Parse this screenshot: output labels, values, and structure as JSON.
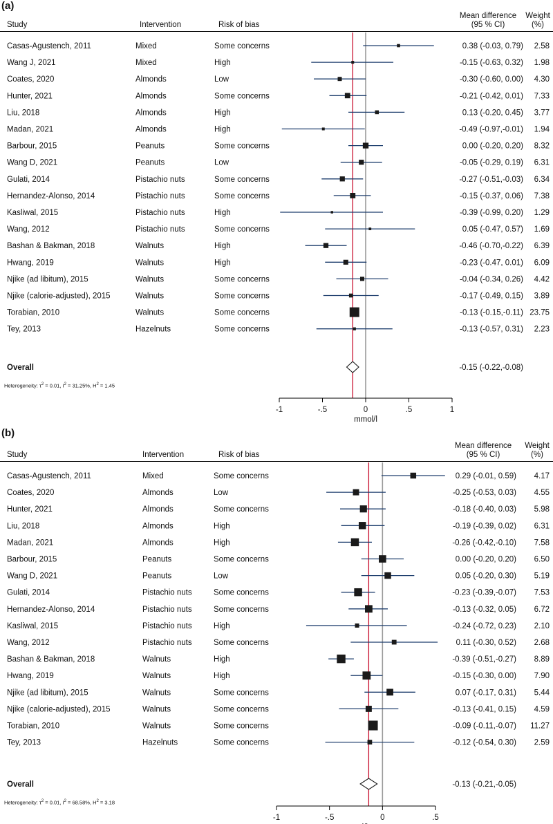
{
  "chart_data": [
    {
      "type": "forest",
      "panel_label": "(a)",
      "headers": {
        "study": "Study",
        "intervention": "Intervention",
        "risk": "Risk of bias",
        "md_line1": "Mean difference",
        "md_line2": "(95 % CI)",
        "weight_line1": "Weight",
        "weight_line2": "(%)"
      },
      "xlabel": "mmol/l",
      "xlim": [
        -1,
        1
      ],
      "ticks": [
        -1,
        -0.5,
        0,
        0.5,
        1
      ],
      "tick_labels": [
        "-1",
        "-.5",
        "0",
        ".5",
        "1"
      ],
      "pooled_line": -0.15,
      "rows": [
        {
          "study": "Casas-Agustench, 2011",
          "intervention": "Mixed",
          "risk": "Some concerns",
          "md": 0.38,
          "lo": -0.03,
          "hi": 0.79,
          "ci_text": "0.38 (-0.03, 0.79)",
          "weight": "2.58"
        },
        {
          "study": "Wang J, 2021",
          "intervention": "Mixed",
          "risk": "High",
          "md": -0.15,
          "lo": -0.63,
          "hi": 0.32,
          "ci_text": "-0.15 (-0.63, 0.32)",
          "weight": "1.98"
        },
        {
          "study": "Coates, 2020",
          "intervention": "Almonds",
          "risk": "Low",
          "md": -0.3,
          "lo": -0.6,
          "hi": 0.0,
          "ci_text": "-0.30 (-0.60, 0.00)",
          "weight": "4.30"
        },
        {
          "study": "Hunter, 2021",
          "intervention": "Almonds",
          "risk": "Some concerns",
          "md": -0.21,
          "lo": -0.42,
          "hi": 0.01,
          "ci_text": "-0.21 (-0.42, 0.01)",
          "weight": "7.33"
        },
        {
          "study": "Liu, 2018",
          "intervention": "Almonds",
          "risk": "High",
          "md": 0.13,
          "lo": -0.2,
          "hi": 0.45,
          "ci_text": "0.13 (-0.20, 0.45)",
          "weight": "3.77"
        },
        {
          "study": "Madan, 2021",
          "intervention": "Almonds",
          "risk": "High",
          "md": -0.49,
          "lo": -0.97,
          "hi": -0.01,
          "ci_text": "-0.49 (-0.97,-0.01)",
          "weight": "1.94"
        },
        {
          "study": "Barbour, 2015",
          "intervention": "Peanuts",
          "risk": "Some concerns",
          "md": 0.0,
          "lo": -0.2,
          "hi": 0.2,
          "ci_text": "0.00 (-0.20, 0.20)",
          "weight": "8.32"
        },
        {
          "study": "Wang D, 2021",
          "intervention": "Peanuts",
          "risk": "Low",
          "md": -0.05,
          "lo": -0.29,
          "hi": 0.19,
          "ci_text": "-0.05 (-0.29, 0.19)",
          "weight": "6.31"
        },
        {
          "study": "Gulati, 2014",
          "intervention": "Pistachio nuts",
          "risk": "Some concerns",
          "md": -0.27,
          "lo": -0.51,
          "hi": -0.03,
          "ci_text": "-0.27 (-0.51,-0.03)",
          "weight": "6.34"
        },
        {
          "study": "Hernandez-Alonso, 2014",
          "intervention": "Pistachio nuts",
          "risk": "Some concerns",
          "md": -0.15,
          "lo": -0.37,
          "hi": 0.06,
          "ci_text": "-0.15 (-0.37, 0.06)",
          "weight": "7.38"
        },
        {
          "study": "Kasliwal, 2015",
          "intervention": "Pistachio nuts",
          "risk": "High",
          "md": -0.39,
          "lo": -0.99,
          "hi": 0.2,
          "ci_text": "-0.39 (-0.99, 0.20)",
          "weight": "1.29"
        },
        {
          "study": "Wang, 2012",
          "intervention": "Pistachio nuts",
          "risk": "Some concerns",
          "md": 0.05,
          "lo": -0.47,
          "hi": 0.57,
          "ci_text": "0.05 (-0.47, 0.57)",
          "weight": "1.69"
        },
        {
          "study": "Bashan & Bakman, 2018",
          "intervention": "Walnuts",
          "risk": "High",
          "md": -0.46,
          "lo": -0.7,
          "hi": -0.22,
          "ci_text": "-0.46 (-0.70,-0.22)",
          "weight": "6.39"
        },
        {
          "study": "Hwang, 2019",
          "intervention": "Walnuts",
          "risk": "High",
          "md": -0.23,
          "lo": -0.47,
          "hi": 0.01,
          "ci_text": "-0.23 (-0.47, 0.01)",
          "weight": "6.09"
        },
        {
          "study": "Njike (ad libitum), 2015",
          "intervention": "Walnuts",
          "risk": "Some concerns",
          "md": -0.04,
          "lo": -0.34,
          "hi": 0.26,
          "ci_text": "-0.04 (-0.34, 0.26)",
          "weight": "4.42"
        },
        {
          "study": "Njike (calorie-adjusted), 2015",
          "intervention": "Walnuts",
          "risk": "Some concerns",
          "md": -0.17,
          "lo": -0.49,
          "hi": 0.15,
          "ci_text": "-0.17 (-0.49, 0.15)",
          "weight": "3.89"
        },
        {
          "study": "Torabian, 2010",
          "intervention": "Walnuts",
          "risk": "Some concerns",
          "md": -0.13,
          "lo": -0.15,
          "hi": -0.11,
          "ci_text": "-0.13 (-0.15,-0.11)",
          "weight": "23.75"
        },
        {
          "study": "Tey, 2013",
          "intervention": "Hazelnuts",
          "risk": "Some concerns",
          "md": -0.13,
          "lo": -0.57,
          "hi": 0.31,
          "ci_text": "-0.13 (-0.57, 0.31)",
          "weight": "2.23"
        }
      ],
      "overall": {
        "label": "Overall",
        "md": -0.15,
        "lo": -0.22,
        "hi": -0.08,
        "ci_text": "-0.15 (-0.22,-0.08)"
      },
      "heterogeneity": {
        "prefix": "Heterogeneity: τ",
        "tau_sup": "2",
        "tau_val": " = 0.01, I",
        "i_sup": "2",
        "i_val": " = 31.25%, H",
        "h_sup": "2",
        "h_val": " = 1.45"
      }
    },
    {
      "type": "forest",
      "panel_label": "(b)",
      "headers": {
        "study": "Study",
        "intervention": "Intervention",
        "risk": "Risk of bias",
        "md_line1": "Mean difference",
        "md_line2": "(95 % CI)",
        "weight_line1": "Weight",
        "weight_line2": "(%)"
      },
      "xlabel": "mmol/l",
      "xlim": [
        -1,
        0.5
      ],
      "ticks": [
        -1,
        -0.5,
        0,
        0.5
      ],
      "tick_labels": [
        "-1",
        "-.5",
        "0",
        ".5"
      ],
      "pooled_line": -0.13,
      "rows": [
        {
          "study": "Casas-Agustench, 2011",
          "intervention": "Mixed",
          "risk": "Some concerns",
          "md": 0.29,
          "lo": -0.01,
          "hi": 0.59,
          "ci_text": "0.29 (-0.01, 0.59)",
          "weight": "4.17"
        },
        {
          "study": "Coates, 2020",
          "intervention": "Almonds",
          "risk": "Low",
          "md": -0.25,
          "lo": -0.53,
          "hi": 0.03,
          "ci_text": "-0.25 (-0.53, 0.03)",
          "weight": "4.55"
        },
        {
          "study": "Hunter, 2021",
          "intervention": "Almonds",
          "risk": "Some concerns",
          "md": -0.18,
          "lo": -0.4,
          "hi": 0.03,
          "ci_text": "-0.18 (-0.40, 0.03)",
          "weight": "5.98"
        },
        {
          "study": "Liu, 2018",
          "intervention": "Almonds",
          "risk": "High",
          "md": -0.19,
          "lo": -0.39,
          "hi": 0.02,
          "ci_text": "-0.19 (-0.39, 0.02)",
          "weight": "6.31"
        },
        {
          "study": "Madan, 2021",
          "intervention": "Almonds",
          "risk": "High",
          "md": -0.26,
          "lo": -0.42,
          "hi": -0.1,
          "ci_text": "-0.26 (-0.42,-0.10)",
          "weight": "7.58"
        },
        {
          "study": "Barbour, 2015",
          "intervention": "Peanuts",
          "risk": "Some concerns",
          "md": 0.0,
          "lo": -0.2,
          "hi": 0.2,
          "ci_text": "0.00 (-0.20, 0.20)",
          "weight": "6.50"
        },
        {
          "study": "Wang D, 2021",
          "intervention": "Peanuts",
          "risk": "Low",
          "md": 0.05,
          "lo": -0.2,
          "hi": 0.3,
          "ci_text": "0.05 (-0.20, 0.30)",
          "weight": "5.19"
        },
        {
          "study": "Gulati, 2014",
          "intervention": "Pistachio nuts",
          "risk": "Some concerns",
          "md": -0.23,
          "lo": -0.39,
          "hi": -0.07,
          "ci_text": "-0.23 (-0.39,-0.07)",
          "weight": "7.53"
        },
        {
          "study": "Hernandez-Alonso, 2014",
          "intervention": "Pistachio nuts",
          "risk": "Some concerns",
          "md": -0.13,
          "lo": -0.32,
          "hi": 0.05,
          "ci_text": "-0.13 (-0.32, 0.05)",
          "weight": "6.72"
        },
        {
          "study": "Kasliwal, 2015",
          "intervention": "Pistachio nuts",
          "risk": "High",
          "md": -0.24,
          "lo": -0.72,
          "hi": 0.23,
          "ci_text": "-0.24 (-0.72, 0.23)",
          "weight": "2.10"
        },
        {
          "study": "Wang, 2012",
          "intervention": "Pistachio nuts",
          "risk": "Some concerns",
          "md": 0.11,
          "lo": -0.3,
          "hi": 0.52,
          "ci_text": "0.11 (-0.30, 0.52)",
          "weight": "2.68"
        },
        {
          "study": "Bashan & Bakman, 2018",
          "intervention": "Walnuts",
          "risk": "High",
          "md": -0.39,
          "lo": -0.51,
          "hi": -0.27,
          "ci_text": "-0.39 (-0.51,-0.27)",
          "weight": "8.89"
        },
        {
          "study": "Hwang, 2019",
          "intervention": "Walnuts",
          "risk": "High",
          "md": -0.15,
          "lo": -0.3,
          "hi": 0.0,
          "ci_text": "-0.15 (-0.30, 0.00)",
          "weight": "7.90"
        },
        {
          "study": "Njike (ad libitum), 2015",
          "intervention": "Walnuts",
          "risk": "Some concerns",
          "md": 0.07,
          "lo": -0.17,
          "hi": 0.31,
          "ci_text": "0.07 (-0.17, 0.31)",
          "weight": "5.44"
        },
        {
          "study": "Njike (calorie-adjusted), 2015",
          "intervention": "Walnuts",
          "risk": "Some concerns",
          "md": -0.13,
          "lo": -0.41,
          "hi": 0.15,
          "ci_text": "-0.13 (-0.41, 0.15)",
          "weight": "4.59"
        },
        {
          "study": "Torabian, 2010",
          "intervention": "Walnuts",
          "risk": "Some concerns",
          "md": -0.09,
          "lo": -0.11,
          "hi": -0.07,
          "ci_text": "-0.09 (-0.11,-0.07)",
          "weight": "11.27"
        },
        {
          "study": "Tey, 2013",
          "intervention": "Hazelnuts",
          "risk": "Some concerns",
          "md": -0.12,
          "lo": -0.54,
          "hi": 0.3,
          "ci_text": "-0.12 (-0.54, 0.30)",
          "weight": "2.59"
        }
      ],
      "overall": {
        "label": "Overall",
        "md": -0.13,
        "lo": -0.21,
        "hi": -0.05,
        "ci_text": "-0.13 (-0.21,-0.05)"
      },
      "heterogeneity": {
        "prefix": "Heterogeneity: τ",
        "tau_sup": "2",
        "tau_val": " = 0.01, I",
        "i_sup": "2",
        "i_val": " = 68.58%, H",
        "h_sup": "2",
        "h_val": " = 3.18"
      }
    }
  ],
  "colors": {
    "ci_line": "#1f3f6e",
    "pooled_line": "#c8102e",
    "null_line": "#9a9a9a",
    "marker": "#1a1a1a",
    "text": "#111111"
  }
}
